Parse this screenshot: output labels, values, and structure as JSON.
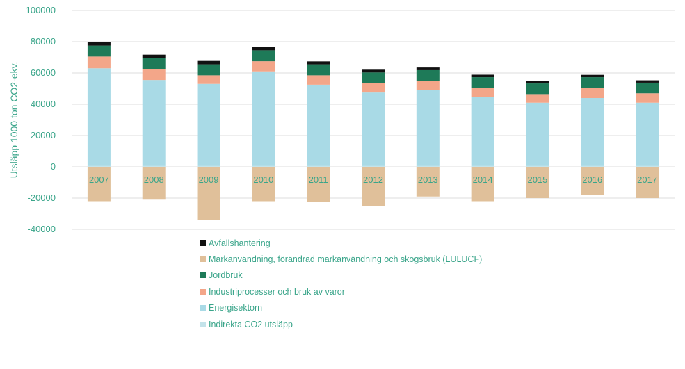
{
  "chart_data": {
    "type": "bar",
    "stacked": true,
    "ylabel": "Utsläpp 1000 ton CO2-ekv.",
    "ylim": [
      -40000,
      100000
    ],
    "yticks": [
      100000,
      80000,
      60000,
      40000,
      20000,
      0,
      -20000,
      -40000
    ],
    "grid": true,
    "legend_position": "bottom",
    "categories": [
      "2007",
      "2008",
      "2009",
      "2010",
      "2011",
      "2012",
      "2013",
      "2014",
      "2015",
      "2016",
      "2017"
    ],
    "series": [
      {
        "name": "Avfallshantering",
        "color": "#111111",
        "values": [
          2200,
          2200,
          2200,
          2000,
          1900,
          1800,
          1700,
          1600,
          1600,
          1500,
          1500
        ]
      },
      {
        "name": "Markanvändning, förändrad markanvändning och skogsbruk (LULUCF)",
        "color": "#e0c09a",
        "values": [
          -22000,
          -21000,
          -34000,
          -22000,
          -22500,
          -25000,
          -19000,
          -22000,
          -20000,
          -18000,
          -20000
        ]
      },
      {
        "name": "Jordbruk",
        "color": "#1e7a58",
        "values": [
          7000,
          7000,
          7000,
          7000,
          7000,
          6800,
          6800,
          6800,
          6800,
          6800,
          6800
        ]
      },
      {
        "name": "Industriprocesser och bruk av varor",
        "color": "#f3a689",
        "values": [
          7500,
          7000,
          5500,
          6500,
          6000,
          6000,
          6000,
          6000,
          5500,
          6500,
          6000
        ]
      },
      {
        "name": "Energisektorn",
        "color": "#a9dae6",
        "values": [
          62500,
          55000,
          52500,
          60500,
          52000,
          47000,
          48500,
          44000,
          40500,
          43500,
          40500
        ]
      },
      {
        "name": "Indirekta CO2 utsläpp",
        "color": "#c4e3ea",
        "values": [
          500,
          500,
          500,
          500,
          500,
          500,
          500,
          500,
          500,
          500,
          500
        ]
      }
    ]
  }
}
